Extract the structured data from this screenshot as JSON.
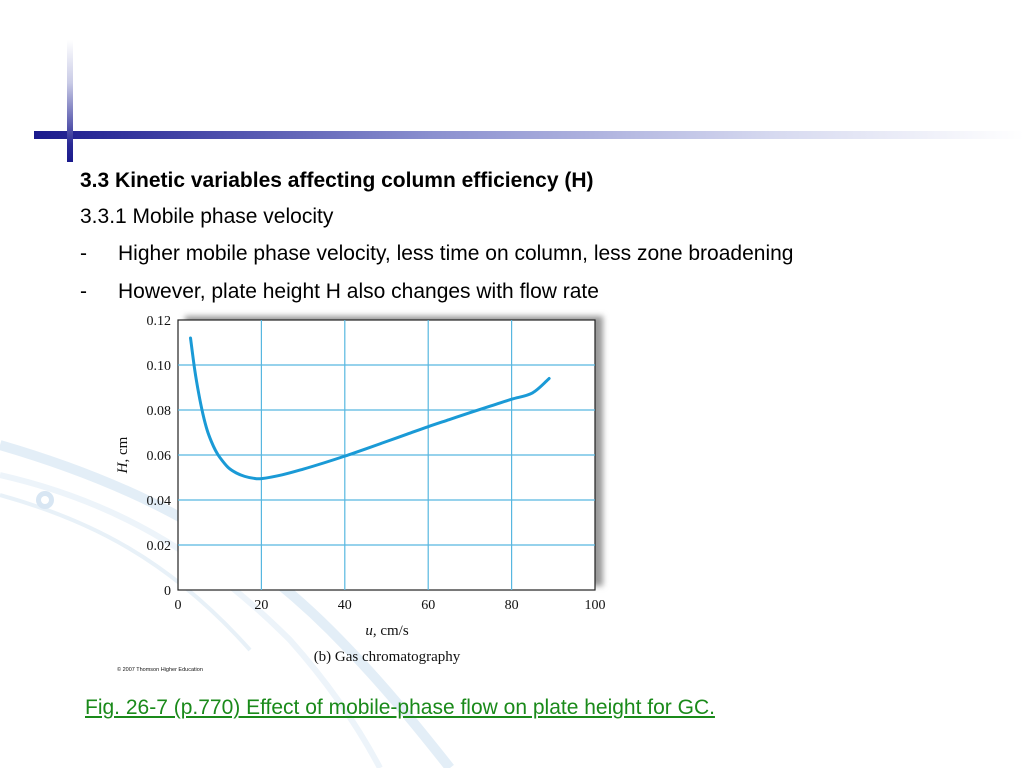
{
  "slide": {
    "heading": "3.3 Kinetic variables affecting column efficiency (H)",
    "subheading": "3.3.1 Mobile phase velocity",
    "bullets": [
      {
        "marker": "-",
        "text": "Higher mobile phase velocity, less time on column, less zone broadening"
      },
      {
        "marker": "-",
        "text": "However, plate height H also changes with flow rate"
      }
    ],
    "caption": "Fig. 26-7 (p.770)  Effect of mobile-phase flow on plate height for GC.",
    "theme_colors": {
      "title_bar": "#1a1a8c",
      "caption": "#1a8a1a",
      "curve": "#1a9ad6",
      "grid": "#57b7e0"
    }
  },
  "chart_data": {
    "type": "line",
    "title": "(b) Gas chromatography",
    "xlabel_italic": "u",
    "xlabel_rest": ", cm/s",
    "ylabel_italic": "H",
    "ylabel_rest": ", cm",
    "xlim": [
      0,
      100
    ],
    "ylim": [
      0,
      0.12
    ],
    "x_ticks": [
      0,
      20,
      40,
      60,
      80,
      100
    ],
    "y_ticks": [
      0,
      0.02,
      0.04,
      0.06,
      0.08,
      0.1,
      0.12
    ],
    "x_tick_labels": [
      "0",
      "20",
      "40",
      "60",
      "80",
      "100"
    ],
    "y_tick_labels": [
      "0",
      "0.02",
      "0.04",
      "0.06",
      "0.08",
      "0.10",
      "0.12"
    ],
    "grid": true,
    "credit": "© 2007 Thomson Higher Education",
    "series": [
      {
        "x": [
          3,
          4,
          5,
          6,
          7,
          8,
          9,
          10,
          12,
          14,
          16,
          18,
          20,
          25,
          30,
          35,
          40,
          45,
          50,
          55,
          60,
          65,
          70,
          75,
          80,
          85,
          89
        ],
        "y": [
          0.112,
          0.098,
          0.087,
          0.078,
          0.071,
          0.066,
          0.062,
          0.059,
          0.0545,
          0.052,
          0.0505,
          0.0497,
          0.0495,
          0.0512,
          0.0537,
          0.0565,
          0.0595,
          0.0627,
          0.066,
          0.0693,
          0.0726,
          0.0757,
          0.0788,
          0.0818,
          0.0848,
          0.0876,
          0.094
        ]
      }
    ]
  }
}
